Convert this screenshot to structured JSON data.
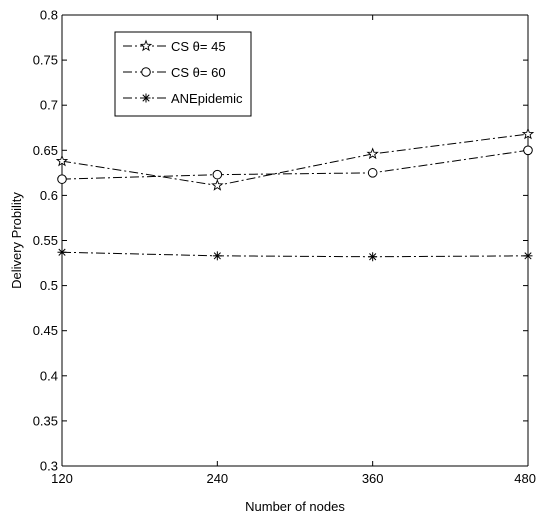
{
  "chart_data": {
    "type": "line",
    "title": "",
    "xlabel": "Number of nodes",
    "ylabel": "Delivery Probility",
    "x": [
      120,
      240,
      360,
      480
    ],
    "xticks": [
      "120",
      "240",
      "360",
      "480"
    ],
    "yticks": [
      "0.3",
      "0.35",
      "0.4",
      "0.45",
      "0.5",
      "0.55",
      "0.6",
      "0.65",
      "0.7",
      "0.75",
      "0.8"
    ],
    "xlim": [
      120,
      480
    ],
    "ylim": [
      0.3,
      0.8
    ],
    "grid": false,
    "legend_position": "top-left",
    "series": [
      {
        "name": "CS θ= 45",
        "marker": "pentagram",
        "line_style": "dash-dot",
        "color": "#000000",
        "values": [
          0.638,
          0.611,
          0.646,
          0.668
        ]
      },
      {
        "name": "CS θ= 60",
        "marker": "circle",
        "line_style": "dash-dot",
        "color": "#000000",
        "values": [
          0.618,
          0.623,
          0.625,
          0.65
        ]
      },
      {
        "name": "ANEpidemic",
        "marker": "asterisk",
        "line_style": "dash-dot",
        "color": "#000000",
        "values": [
          0.537,
          0.533,
          0.532,
          0.533
        ]
      }
    ]
  }
}
